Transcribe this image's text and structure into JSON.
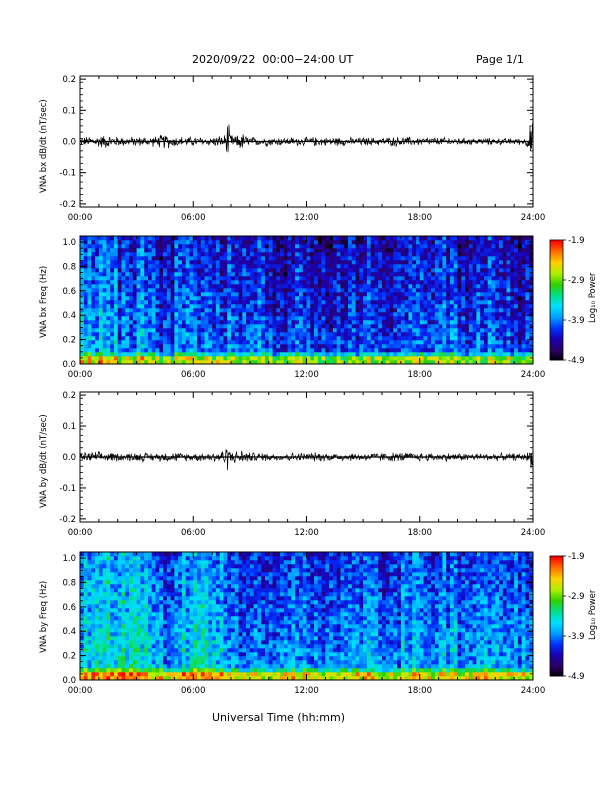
{
  "header": {
    "title": "2020/09/22  00:00−24:00 UT",
    "page": "Page 1/1"
  },
  "xlabel": "Universal Time (hh:mm)",
  "colors": {
    "trace": "#000000",
    "colormap": [
      "#000000",
      "#2b0066",
      "#1a00b0",
      "#0030ff",
      "#00a0ff",
      "#00e0ff",
      "#00e08a",
      "#30d000",
      "#b0f000",
      "#ffd000",
      "#ff7000",
      "#ff0000"
    ]
  },
  "chart_data": [
    {
      "type": "line",
      "name": "panel-bx-waveform",
      "ylabel": "VNA bx dB/dt (nT/sec)",
      "x_ticks": [
        "00:00",
        "06:00",
        "12:00",
        "18:00",
        "24:00"
      ],
      "y_ticks": [
        "-0.2",
        "-0.1",
        "0.0",
        "0.1",
        "0.2"
      ],
      "xlim": [
        0,
        24
      ],
      "ylim": [
        -0.21,
        0.21
      ],
      "series": [
        {
          "x": [
            0,
            0.5,
            1,
            1.5,
            2,
            2.5,
            3,
            3.5,
            4,
            4.5,
            5,
            5.5,
            6,
            6.5,
            7,
            7.5,
            7.7,
            7.8,
            7.9,
            8,
            8.3,
            8.5,
            9,
            9.5,
            10,
            10.5,
            11,
            11.5,
            12,
            12.5,
            13,
            13.5,
            14,
            14.5,
            15,
            15.5,
            16,
            16.5,
            17,
            17.5,
            18,
            18.5,
            19,
            19.5,
            20,
            20.5,
            21,
            21.5,
            22,
            22.5,
            23,
            23.5,
            23.8,
            23.9,
            24
          ],
          "amplitude": [
            0.01,
            0.014,
            0.016,
            0.018,
            0.013,
            0.012,
            0.013,
            0.012,
            0.014,
            0.02,
            0.014,
            0.013,
            0.012,
            0.011,
            0.012,
            0.016,
            0.02,
            0.05,
            0.04,
            0.02,
            0.014,
            0.025,
            0.012,
            0.011,
            0.012,
            0.011,
            0.01,
            0.011,
            0.011,
            0.012,
            0.011,
            0.012,
            0.011,
            0.01,
            0.011,
            0.01,
            0.011,
            0.012,
            0.013,
            0.012,
            0.011,
            0.011,
            0.01,
            0.011,
            0.01,
            0.009,
            0.009,
            0.009,
            0.009,
            0.008,
            0.008,
            0.009,
            0.02,
            0.08,
            0.04
          ]
        }
      ]
    },
    {
      "type": "heatmap",
      "name": "panel-bx-spectrogram",
      "ylabel": "VNA bx Freq (Hz)",
      "colorbar_label": "Log₁₀ Power",
      "colorbar_ticks": [
        "-1.9",
        "-2.9",
        "-3.9",
        "-4.9"
      ],
      "zlim": [
        -4.9,
        -1.9
      ],
      "x_ticks": [
        "00:00",
        "06:00",
        "12:00",
        "18:00",
        "24:00"
      ],
      "y_ticks": [
        "0.0",
        "0.2",
        "0.4",
        "0.6",
        "0.8",
        "1.0"
      ],
      "xlim": [
        0,
        24
      ],
      "ylim": [
        0,
        1.05
      ],
      "mean_log_power_by_hour": [
        -3.7,
        -3.6,
        -3.9,
        -3.7,
        -4.1,
        -3.8,
        -3.8,
        -3.9,
        -4.0,
        -3.9,
        -4.1,
        -3.9,
        -4.0,
        -4.1,
        -4.0,
        -3.9,
        -4.1,
        -3.9,
        -4.0,
        -3.9,
        -4.1,
        -3.9,
        -4.0,
        -4.1
      ]
    },
    {
      "type": "line",
      "name": "panel-by-waveform",
      "ylabel": "VNA by dB/dt (nT/sec)",
      "x_ticks": [
        "00:00",
        "06:00",
        "12:00",
        "18:00",
        "24:00"
      ],
      "y_ticks": [
        "-0.2",
        "-0.1",
        "0.0",
        "0.1",
        "0.2"
      ],
      "xlim": [
        0,
        24
      ],
      "ylim": [
        -0.21,
        0.21
      ],
      "series": [
        {
          "x": [
            0,
            0.5,
            1,
            1.5,
            2,
            2.5,
            3,
            3.5,
            4,
            4.5,
            5,
            5.5,
            6,
            6.5,
            7,
            7.5,
            7.7,
            7.8,
            7.9,
            8,
            8.3,
            8.5,
            9,
            9.5,
            10,
            10.5,
            11,
            11.5,
            12,
            12.5,
            13,
            13.5,
            14,
            14.5,
            15,
            15.5,
            16,
            16.5,
            17,
            17.5,
            18,
            18.5,
            19,
            19.5,
            20,
            20.5,
            21,
            21.5,
            22,
            22.5,
            23,
            23.5,
            23.8,
            23.9,
            24
          ],
          "amplitude": [
            0.012,
            0.014,
            0.013,
            0.012,
            0.011,
            0.011,
            0.012,
            0.011,
            0.011,
            0.012,
            0.012,
            0.011,
            0.011,
            0.011,
            0.013,
            0.018,
            0.025,
            0.035,
            0.03,
            0.02,
            0.015,
            0.02,
            0.012,
            0.011,
            0.011,
            0.01,
            0.011,
            0.011,
            0.011,
            0.012,
            0.011,
            0.011,
            0.011,
            0.01,
            0.011,
            0.011,
            0.012,
            0.012,
            0.012,
            0.011,
            0.011,
            0.011,
            0.01,
            0.011,
            0.01,
            0.01,
            0.01,
            0.01,
            0.01,
            0.009,
            0.009,
            0.009,
            0.015,
            0.03,
            0.02
          ]
        }
      ]
    },
    {
      "type": "heatmap",
      "name": "panel-by-spectrogram",
      "ylabel": "VNA by Freq (Hz)",
      "colorbar_label": "Log₁₀ Power",
      "colorbar_ticks": [
        "-1.9",
        "-2.9",
        "-3.9",
        "-4.9"
      ],
      "zlim": [
        -4.9,
        -1.9
      ],
      "x_ticks": [
        "00:00",
        "06:00",
        "12:00",
        "18:00",
        "24:00"
      ],
      "y_ticks": [
        "0.0",
        "0.2",
        "0.4",
        "0.6",
        "0.8",
        "1.0"
      ],
      "xlim": [
        0,
        24
      ],
      "ylim": [
        0,
        1.05
      ],
      "mean_log_power_by_hour": [
        -3.5,
        -3.3,
        -3.4,
        -3.5,
        -3.7,
        -3.5,
        -3.5,
        -3.6,
        -3.8,
        -3.7,
        -3.8,
        -3.7,
        -3.8,
        -3.9,
        -3.7,
        -3.6,
        -3.8,
        -3.7,
        -3.8,
        -3.7,
        -3.8,
        -3.6,
        -3.6,
        -3.7
      ]
    }
  ]
}
